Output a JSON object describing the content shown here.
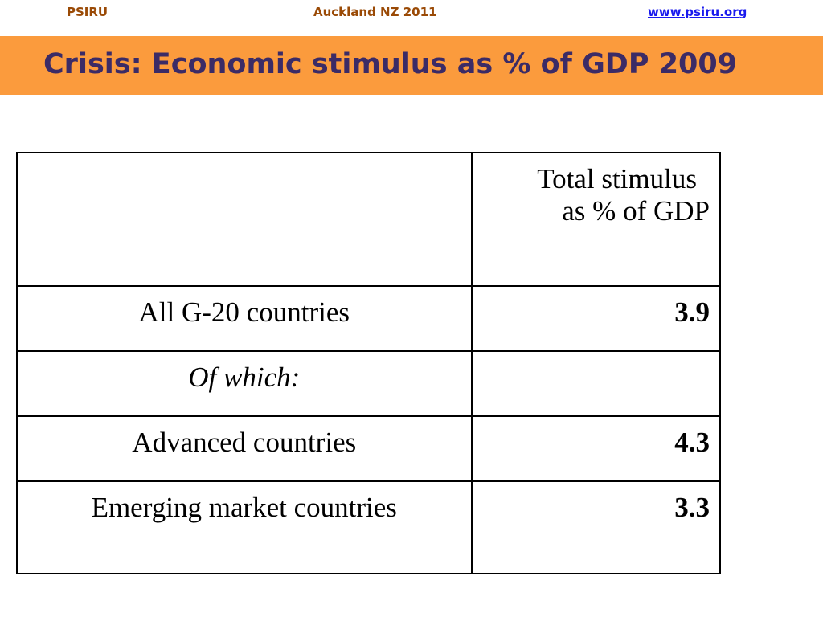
{
  "header": {
    "left": "PSIRU",
    "center": "Auckland NZ 2011",
    "right_link": "www.psiru.org"
  },
  "title": "Crisis: Economic stimulus as % of GDP 2009",
  "colors": {
    "title_band": "#fb9b3d",
    "title_text": "#3b2b66",
    "header_text": "#9a4a06",
    "link": "#1a1aee"
  },
  "table": {
    "column_header": {
      "line1": "Total stimulus",
      "line2": "as % of GDP"
    },
    "rows": [
      {
        "label": "All G-20 countries",
        "value": "3.9"
      },
      {
        "label": "Of which:",
        "value": ""
      },
      {
        "label": "Advanced countries",
        "value": "4.3"
      },
      {
        "label": "Emerging market countries",
        "value": "3.3"
      }
    ]
  }
}
